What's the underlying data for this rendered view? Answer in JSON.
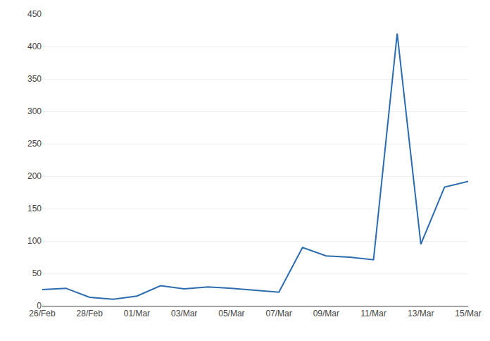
{
  "chart_data": {
    "type": "line",
    "categories": [
      "26/Feb",
      null,
      "28/Feb",
      null,
      "01/Mar",
      null,
      "03/Mar",
      null,
      "05/Mar",
      null,
      "07/Mar",
      null,
      "09/Mar",
      null,
      "11/Mar",
      null,
      "13/Mar",
      null,
      "15/Mar"
    ],
    "values": [
      25,
      27,
      13,
      10,
      15,
      31,
      26,
      29,
      27,
      24,
      21,
      90,
      77,
      75,
      71,
      420,
      95,
      183,
      192
    ],
    "color": "#2B6BB0",
    "ylim": [
      0,
      450
    ],
    "yticks": [
      0,
      50,
      100,
      150,
      200,
      250,
      300,
      350,
      400,
      450
    ],
    "grid": true
  }
}
